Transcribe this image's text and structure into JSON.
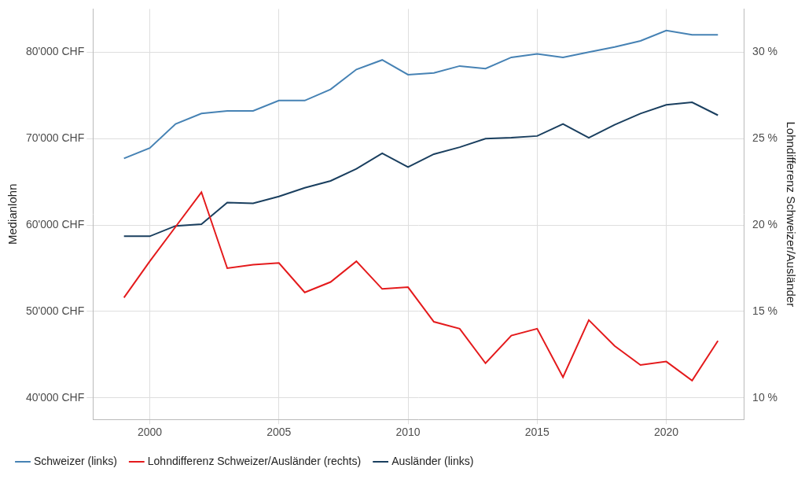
{
  "chart_data": {
    "type": "line",
    "y_label": "Medianlohn",
    "y2_label": "Lohndifferenz Schweizer/Ausländer",
    "x": [
      1999,
      2000,
      2001,
      2002,
      2003,
      2004,
      2005,
      2006,
      2007,
      2008,
      2009,
      2010,
      2011,
      2012,
      2013,
      2014,
      2015,
      2016,
      2017,
      2018,
      2019,
      2020,
      2021,
      2022
    ],
    "series": [
      {
        "name": "Schweizer (links)",
        "color": "#4682b4",
        "axis": "y",
        "values": [
          67700,
          68900,
          71700,
          72900,
          73200,
          73200,
          74400,
          74400,
          75700,
          78000,
          79100,
          77400,
          77600,
          78400,
          78100,
          79400,
          79800,
          79400,
          80000,
          80600,
          81300,
          82500,
          82000,
          82000
        ]
      },
      {
        "name": "Lohndifferenz Schweizer/Ausländer (rechts)",
        "color": "#e41a1c",
        "axis": "y2",
        "values": [
          15.8,
          17.9,
          19.9,
          21.9,
          17.5,
          17.7,
          17.8,
          16.1,
          16.7,
          17.9,
          16.3,
          16.4,
          14.4,
          14.0,
          12.0,
          13.6,
          14.0,
          11.2,
          14.5,
          13.0,
          11.9,
          12.1,
          11.0,
          13.3
        ]
      },
      {
        "name": "Ausländer (links)",
        "color": "#1a3f5f",
        "axis": "y",
        "values": [
          58700,
          58700,
          59900,
          60100,
          62600,
          62500,
          63300,
          64300,
          65100,
          66500,
          68300,
          66700,
          68200,
          69000,
          70000,
          70100,
          70300,
          71700,
          70100,
          71600,
          72900,
          73900,
          74200,
          72700
        ]
      }
    ],
    "xlim": [
      1997.8,
      2023
    ],
    "xticks": [
      2000,
      2005,
      2010,
      2015,
      2020
    ],
    "ylim": [
      37500,
      85000
    ],
    "yticks": [
      {
        "value": 40000,
        "label": "40'000 CHF"
      },
      {
        "value": 50000,
        "label": "50'000 CHF"
      },
      {
        "value": 60000,
        "label": "60'000 CHF"
      },
      {
        "value": 70000,
        "label": "70'000 CHF"
      },
      {
        "value": 80000,
        "label": "80'000 CHF"
      }
    ],
    "y2lim": [
      8.75,
      32.5
    ],
    "y2ticks": [
      {
        "value": 10,
        "label": "10 %"
      },
      {
        "value": 15,
        "label": "15 %"
      },
      {
        "value": 20,
        "label": "20 %"
      },
      {
        "value": 25,
        "label": "25 %"
      },
      {
        "value": 30,
        "label": "30 %"
      }
    ],
    "grid": true,
    "legend": "bottom"
  }
}
